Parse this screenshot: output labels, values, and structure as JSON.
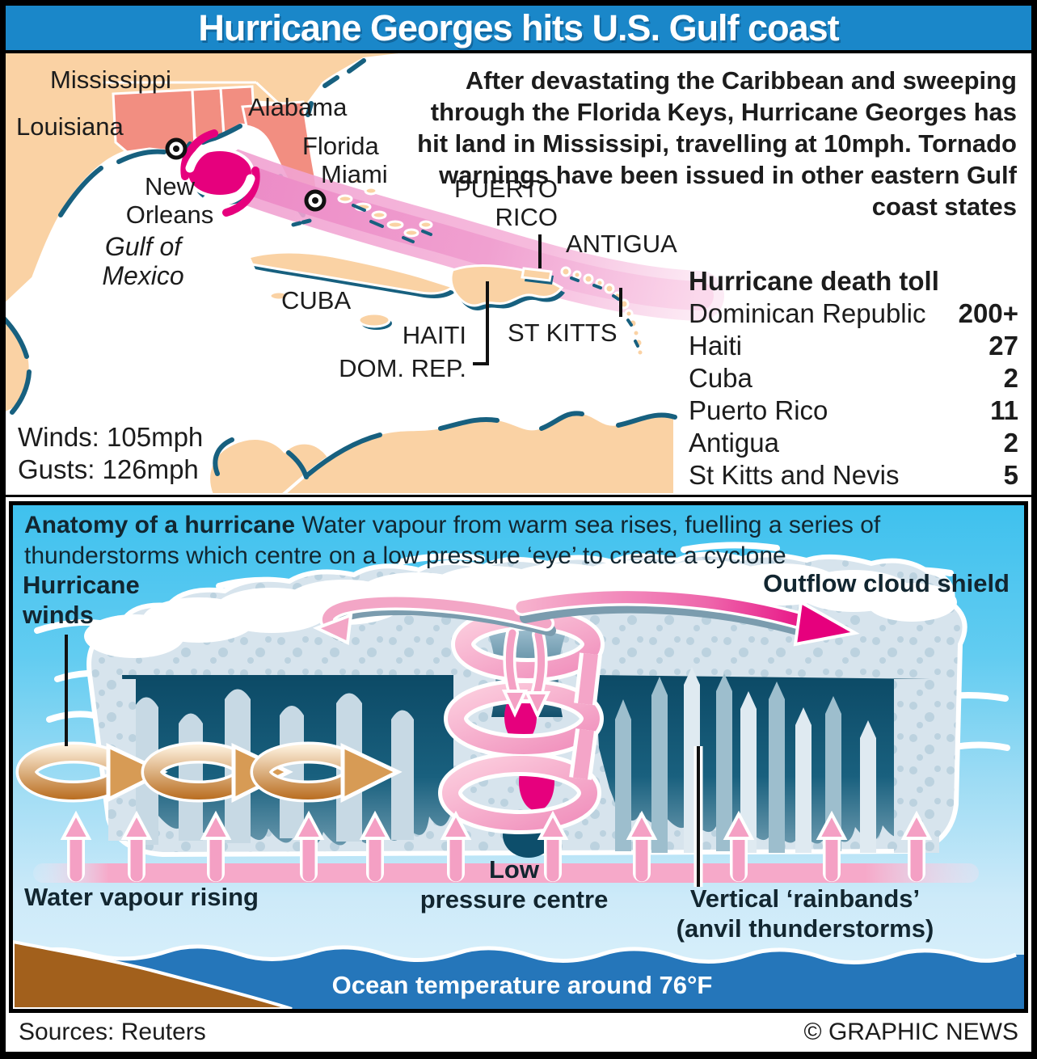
{
  "title": "Hurricane Georges hits U.S. Gulf coast",
  "map": {
    "labels": {
      "mississippi": "Mississippi",
      "louisiana": "Louisiana",
      "alabama": "Alabama",
      "florida": "Florida",
      "miami": "Miami",
      "new_orleans": "New\nOrleans",
      "gulf_of_mexico": "Gulf of\nMexico",
      "cuba": "CUBA",
      "haiti": "HAITI",
      "dom_rep": "DOM. REP.",
      "puerto_rico": "PUERTO\nRICO",
      "antigua": "ANTIGUA",
      "st_kitts": "ST KITTS"
    },
    "intro": "After devastating the Caribbean and sweeping through the Florida Keys, Hurricane Georges has hit land in Mississipi, travelling at 10mph.  Tornado warnings have been issued in other eastern Gulf coast states",
    "stats": {
      "winds": "Winds: 105mph",
      "gusts": "Gusts: 126mph"
    },
    "death_toll": {
      "title": "Hurricane death toll",
      "rows": [
        {
          "country": "Dominican Republic",
          "value": "200+"
        },
        {
          "country": "Haiti",
          "value": "27"
        },
        {
          "country": "Cuba",
          "value": "2"
        },
        {
          "country": "Puerto Rico",
          "value": "11"
        },
        {
          "country": "Antigua",
          "value": "2"
        },
        {
          "country": "St Kitts and Nevis",
          "value": "5"
        }
      ]
    }
  },
  "anatomy": {
    "heading_bold": "Anatomy of a hurricane",
    "heading_rest": " Water vapour from warm sea rises, fuelling a series of thunderstorms which centre on a low pressure ‘eye’ to create a cyclone",
    "labels": {
      "hurricane_winds": "Hurricane\nwinds",
      "outflow": "Outflow cloud shield",
      "water_vapour": "Water vapour rising",
      "low_pressure": "Low\npressure centre",
      "rainbands": "Vertical ‘rainbands’\n(anvil thunderstorms)",
      "ocean": "Ocean temperature around 76°F"
    }
  },
  "footer": {
    "sources": "Sources: Reuters",
    "credit": "© GRAPHIC NEWS"
  },
  "colors": {
    "title_bar": "#1a87c9",
    "track_pink": "#f2a7d4",
    "hurricane_magenta": "#e6007d",
    "land_peach": "#fad2a4",
    "state_salmon": "#f28e81",
    "coast_teal": "#17607f",
    "sky_cyan": "#41c3ee",
    "ocean_blue": "#2576ba",
    "land_brown": "#a2601c"
  }
}
